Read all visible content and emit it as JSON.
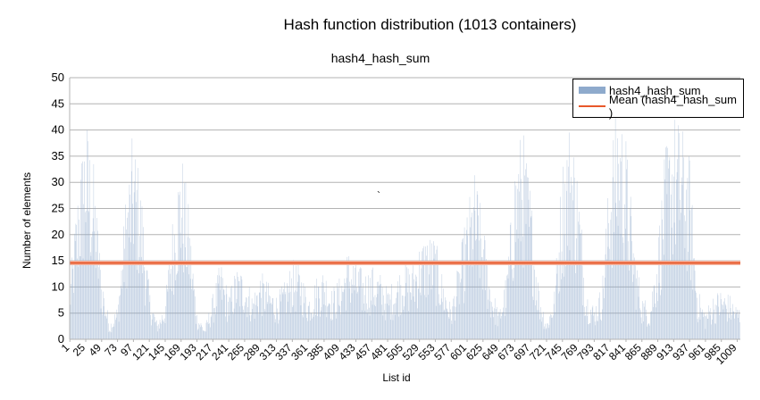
{
  "chart_data": {
    "type": "bar",
    "title": "Hash function distribution (1013 containers)",
    "subtitle": "hash4_hash_sum",
    "xlabel": "List id",
    "ylabel": "Number of elements",
    "ylim": [
      0,
      50
    ],
    "yticks": [
      0,
      5,
      10,
      15,
      20,
      25,
      30,
      35,
      40,
      45,
      50
    ],
    "grid": true,
    "legend_position": "top-right",
    "n_categories": 1013,
    "xtick_labels": [
      "1",
      "25",
      "49",
      "73",
      "97",
      "121",
      "145",
      "169",
      "193",
      "217",
      "241",
      "265",
      "289",
      "313",
      "337",
      "361",
      "385",
      "409",
      "433",
      "457",
      "481",
      "505",
      "529",
      "553",
      "577",
      "601",
      "625",
      "649",
      "673",
      "697",
      "721",
      "745",
      "769",
      "793",
      "817",
      "841",
      "865",
      "889",
      "913",
      "937",
      "961",
      "985",
      "1009"
    ],
    "series": [
      {
        "name": "hash4_hash_sum",
        "kind": "bar",
        "color": "#8eaacc",
        "envelope_every_12": [
          10,
          27,
          40,
          31,
          12,
          3,
          6,
          25,
          37,
          27,
          9,
          3,
          7,
          23,
          34,
          23,
          5,
          2,
          8,
          14,
          8,
          13,
          12,
          8,
          12,
          10,
          8,
          10,
          14,
          13,
          8,
          11,
          13,
          9,
          11,
          16,
          14,
          12,
          13,
          12,
          9,
          11,
          14,
          13,
          17,
          19,
          18,
          11,
          6,
          14,
          23,
          30,
          21,
          10,
          5,
          12,
          32,
          38,
          27,
          10,
          3,
          9,
          32,
          40,
          29,
          9,
          6,
          10,
          33,
          43,
          36,
          18,
          8,
          6,
          18,
          34,
          40,
          38,
          32,
          9,
          5,
          8,
          9,
          8,
          6
        ]
      },
      {
        "name": "Mean (hash4_hash_sum )",
        "kind": "line",
        "color": "#e8582a",
        "value": 14.6
      }
    ]
  },
  "legend": {
    "bars_label": "hash4_hash_sum",
    "mean_label": "Mean (hash4_hash_sum )"
  },
  "stray_mark": "`"
}
